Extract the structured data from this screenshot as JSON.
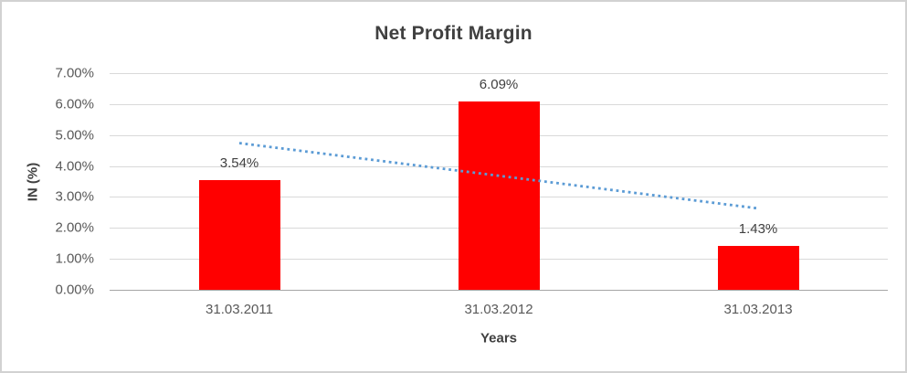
{
  "chart_data": {
    "type": "bar",
    "title": "Net Profit Margin",
    "xlabel": "Years",
    "ylabel": "IN (%)",
    "categories": [
      "31.03.2011",
      "31.03.2012",
      "31.03.2013"
    ],
    "values": [
      3.54,
      6.09,
      1.43
    ],
    "data_labels": [
      "3.54%",
      "6.09%",
      "1.43%"
    ],
    "ylim": [
      0,
      7
    ],
    "ytick_step": 1,
    "ytick_labels": [
      "0.00%",
      "1.00%",
      "2.00%",
      "3.00%",
      "4.00%",
      "5.00%",
      "6.00%",
      "7.00%"
    ],
    "grid": true,
    "legend": "none",
    "trendline": {
      "type": "linear",
      "style": "dotted",
      "start_value": 4.74,
      "end_value": 2.63,
      "color": "#5b9bd5"
    },
    "colors": {
      "bar": "#ff0000",
      "trendline": "#5b9bd5",
      "title_text": "#404040",
      "axis_text": "#595959",
      "axis_title_text": "#404040",
      "gridline": "#d9d9d9",
      "axis_line": "#a6a6a6",
      "border": "#d2d2d2",
      "background": "#ffffff"
    }
  }
}
